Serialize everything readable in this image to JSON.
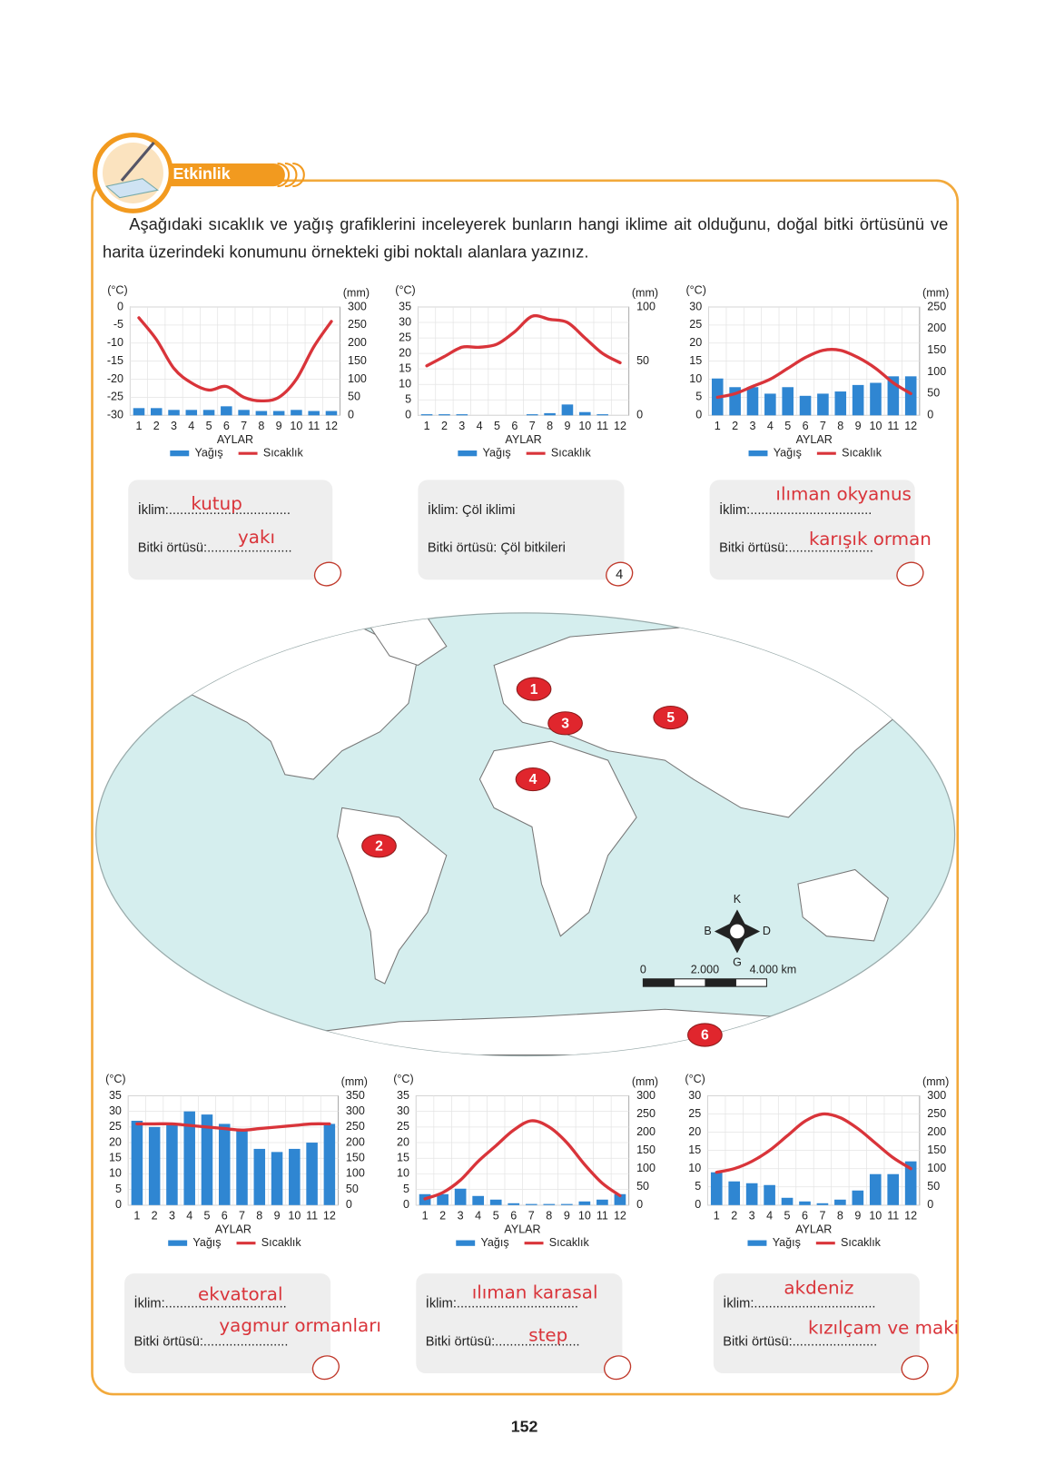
{
  "activity": {
    "label": "Etkinlik",
    "instruction": "Aşağıdaki sıcaklık ve yağış grafiklerini inceleyerek bunların hangi iklime ait olduğunu, doğal bitki örtüsünü ve harita üzerindeki konumunu örnekteki gibi noktalı alanlara yazınız."
  },
  "chart_data": [
    {
      "type": "climograph",
      "categories": [
        "1",
        "2",
        "3",
        "4",
        "5",
        "6",
        "7",
        "8",
        "9",
        "10",
        "11",
        "12"
      ],
      "xlabel": "AYLAR",
      "ylabel": "(°C)",
      "y2label": "(mm)",
      "ylim": [
        -30,
        0
      ],
      "yticks": [
        -30,
        -25,
        -20,
        -15,
        -10,
        -5,
        0
      ],
      "y2lim": [
        0,
        300
      ],
      "y2ticks": [
        0,
        50,
        100,
        150,
        200,
        250,
        300
      ],
      "grid": true,
      "legend": "bottom",
      "series": [
        {
          "name": "Yağış",
          "kind": "bar",
          "axis": "y2",
          "color": "#2f86d2",
          "values": [
            20,
            20,
            15,
            15,
            15,
            25,
            15,
            12,
            12,
            15,
            12,
            12
          ]
        },
        {
          "name": "Sıcaklık",
          "kind": "line",
          "axis": "y",
          "color": "#d9343a",
          "values": [
            -3,
            -9,
            -17,
            -21,
            -23,
            -22,
            -25,
            -26,
            -25,
            -20,
            -11,
            -4
          ]
        }
      ]
    },
    {
      "type": "climograph",
      "categories": [
        "1",
        "2",
        "3",
        "4",
        "5",
        "6",
        "7",
        "8",
        "9",
        "10",
        "11",
        "12"
      ],
      "xlabel": "AYLAR",
      "ylabel": "(°C)",
      "y2label": "(mm)",
      "ylim": [
        0,
        35
      ],
      "yticks": [
        0,
        5,
        10,
        15,
        20,
        25,
        30,
        35
      ],
      "y2lim": [
        0,
        100
      ],
      "y2ticks": [
        0,
        50,
        100
      ],
      "grid": true,
      "legend": "bottom",
      "series": [
        {
          "name": "Yağış",
          "kind": "bar",
          "axis": "y2",
          "color": "#2f86d2",
          "values": [
            1,
            1,
            1,
            0,
            0,
            0,
            1,
            2,
            10,
            3,
            1,
            0
          ]
        },
        {
          "name": "Sıcaklık",
          "kind": "line",
          "axis": "y",
          "color": "#d9343a",
          "values": [
            16,
            19,
            22,
            22,
            23,
            27,
            32,
            31,
            30,
            25,
            20,
            17
          ]
        }
      ]
    },
    {
      "type": "climograph",
      "categories": [
        "1",
        "2",
        "3",
        "4",
        "5",
        "6",
        "7",
        "8",
        "9",
        "10",
        "11",
        "12"
      ],
      "xlabel": "AYLAR",
      "ylabel": "(°C)",
      "y2label": "(mm)",
      "ylim": [
        0,
        30
      ],
      "yticks": [
        0,
        5,
        10,
        15,
        20,
        25,
        30
      ],
      "y2lim": [
        0,
        250
      ],
      "y2ticks": [
        0,
        50,
        100,
        150,
        200,
        250
      ],
      "grid": true,
      "legend": "bottom",
      "series": [
        {
          "name": "Yağış",
          "kind": "bar",
          "axis": "y2",
          "color": "#2f86d2",
          "values": [
            85,
            65,
            65,
            50,
            65,
            45,
            50,
            55,
            70,
            75,
            90,
            90
          ]
        },
        {
          "name": "Sıcaklık",
          "kind": "line",
          "axis": "y",
          "color": "#d9343a",
          "values": [
            5,
            6,
            8,
            10,
            13,
            16,
            18,
            18,
            16,
            13,
            9,
            6
          ]
        }
      ]
    },
    {
      "type": "climograph",
      "categories": [
        "1",
        "2",
        "3",
        "4",
        "5",
        "6",
        "7",
        "8",
        "9",
        "10",
        "11",
        "12"
      ],
      "xlabel": "AYLAR",
      "ylabel": "(°C)",
      "y2label": "(mm)",
      "ylim": [
        0,
        35
      ],
      "yticks": [
        0,
        5,
        10,
        15,
        20,
        25,
        30,
        35
      ],
      "y2lim": [
        0,
        350
      ],
      "y2ticks": [
        0,
        50,
        100,
        150,
        200,
        250,
        300,
        350
      ],
      "grid": true,
      "legend": "bottom",
      "series": [
        {
          "name": "Yağış",
          "kind": "bar",
          "axis": "y2",
          "color": "#2f86d2",
          "values": [
            270,
            250,
            260,
            300,
            290,
            260,
            240,
            180,
            170,
            180,
            200,
            260
          ]
        },
        {
          "name": "Sıcaklık",
          "kind": "line",
          "axis": "y",
          "color": "#d9343a",
          "values": [
            26,
            26,
            26,
            25.5,
            25,
            24.5,
            24,
            24.5,
            25,
            25.5,
            26,
            26
          ]
        }
      ]
    },
    {
      "type": "climograph",
      "categories": [
        "1",
        "2",
        "3",
        "4",
        "5",
        "6",
        "7",
        "8",
        "9",
        "10",
        "11",
        "12"
      ],
      "xlabel": "AYLAR",
      "ylabel": "(°C)",
      "y2label": "(mm)",
      "ylim": [
        0,
        35
      ],
      "yticks": [
        0,
        5,
        10,
        15,
        20,
        25,
        30,
        35
      ],
      "y2lim": [
        0,
        300
      ],
      "y2ticks": [
        0,
        50,
        100,
        150,
        200,
        250,
        300
      ],
      "grid": true,
      "legend": "bottom",
      "series": [
        {
          "name": "Yağış",
          "kind": "bar",
          "axis": "y2",
          "color": "#2f86d2",
          "values": [
            30,
            30,
            45,
            25,
            15,
            5,
            3,
            3,
            3,
            10,
            15,
            30
          ]
        },
        {
          "name": "Sıcaklık",
          "kind": "line",
          "axis": "y",
          "color": "#d9343a",
          "values": [
            2,
            4,
            8,
            14,
            19,
            24,
            27,
            25,
            20,
            13,
            7,
            3
          ]
        }
      ]
    },
    {
      "type": "climograph",
      "categories": [
        "1",
        "2",
        "3",
        "4",
        "5",
        "6",
        "7",
        "8",
        "9",
        "10",
        "11",
        "12"
      ],
      "xlabel": "AYLAR",
      "ylabel": "(°C)",
      "y2label": "(mm)",
      "ylim": [
        0,
        30
      ],
      "yticks": [
        0,
        5,
        10,
        15,
        20,
        25,
        30
      ],
      "y2lim": [
        0,
        300
      ],
      "y2ticks": [
        0,
        50,
        100,
        150,
        200,
        250,
        300
      ],
      "grid": true,
      "legend": "bottom",
      "series": [
        {
          "name": "Yağış",
          "kind": "bar",
          "axis": "y2",
          "color": "#2f86d2",
          "values": [
            90,
            65,
            60,
            55,
            20,
            10,
            5,
            15,
            40,
            85,
            85,
            120
          ]
        },
        {
          "name": "Sıcaklık",
          "kind": "line",
          "axis": "y",
          "color": "#d9343a",
          "values": [
            9,
            10,
            12,
            15,
            19,
            23,
            25,
            24,
            21,
            17,
            13,
            10
          ]
        }
      ]
    }
  ],
  "answer_boxes": [
    {
      "climate_label": "İklim:.................................",
      "vegetation_label": "Bitki örtüsü:.......................",
      "climate_answer": "kutup",
      "vegetation_answer": "yakı"
    },
    {
      "climate_label": "İklim: Çöl iklimi",
      "vegetation_label": "Bitki örtüsü: Çöl bitkileri",
      "number": "4"
    },
    {
      "climate_label": "İklim:.................................",
      "vegetation_label": "Bitki örtüsü:.......................",
      "climate_answer": "ılıman okyanus",
      "vegetation_answer": "karışık orman"
    },
    {
      "climate_label": "İklim:.................................",
      "vegetation_label": "Bitki örtüsü:.......................",
      "climate_answer": "ekvatoral",
      "vegetation_answer": "yagmur ormanları"
    },
    {
      "climate_label": "İklim:.................................",
      "vegetation_label": "Bitki örtüsü:.......................",
      "climate_answer": "ılıman karasal",
      "vegetation_answer": "step"
    },
    {
      "climate_label": "İklim:.................................",
      "vegetation_label": "Bitki örtüsü:.......................",
      "climate_answer": "akdeniz",
      "vegetation_answer": "kızılçam ve maki"
    }
  ],
  "map": {
    "markers": [
      "1",
      "2",
      "3",
      "4",
      "5",
      "6"
    ],
    "compass": {
      "north": "K",
      "west": "B",
      "east": "D",
      "south": "G"
    },
    "scale": [
      "0",
      "2.000",
      "4.000 km"
    ]
  },
  "page_number": "152"
}
